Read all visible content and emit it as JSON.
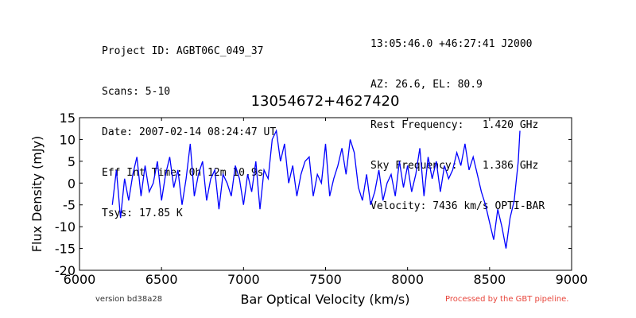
{
  "header": {
    "left": [
      "Project ID: AGBT06C_049_37",
      "Scans: 5-10",
      "Date: 2007-02-14 08:24:47 UT",
      "Eff Int Time: 0h 12m 10.9s",
      "Tsys: 17.85 K"
    ],
    "right": [
      "13:05:46.0 +46:27:41 J2000",
      "AZ: 26.6, EL: 80.9",
      "Rest Frequency:   1.420 GHz",
      "Sky Frequency:    1.386 GHz",
      "Velocity: 7436 km/s OPTI-BAR"
    ]
  },
  "footer": {
    "version": "version bd38a28",
    "pipeline": "Processed by the GBT pipeline.",
    "pipeline_color": "#e8463c"
  },
  "chart_data": {
    "type": "line",
    "title": "13054672+4627420",
    "xlabel": "Bar Optical Velocity (km/s)",
    "ylabel": "Flux Density (mJy)",
    "xlim": [
      6000,
      9000
    ],
    "ylim": [
      -20,
      15
    ],
    "xticks": [
      6000,
      6500,
      7000,
      7500,
      8000,
      8500,
      9000
    ],
    "yticks": [
      -20,
      -15,
      -10,
      -5,
      0,
      5,
      10,
      15
    ],
    "grid": false,
    "series": [
      {
        "color": "#0000ff",
        "x": [
          6200,
          6225,
          6250,
          6275,
          6300,
          6325,
          6350,
          6375,
          6400,
          6425,
          6450,
          6475,
          6500,
          6525,
          6550,
          6575,
          6600,
          6625,
          6650,
          6675,
          6700,
          6725,
          6750,
          6775,
          6800,
          6825,
          6850,
          6875,
          6900,
          6925,
          6950,
          6975,
          7000,
          7025,
          7050,
          7075,
          7100,
          7125,
          7150,
          7175,
          7200,
          7225,
          7250,
          7275,
          7300,
          7325,
          7350,
          7375,
          7400,
          7425,
          7450,
          7475,
          7500,
          7525,
          7550,
          7575,
          7600,
          7625,
          7650,
          7675,
          7700,
          7725,
          7750,
          7775,
          7800,
          7825,
          7850,
          7875,
          7900,
          7925,
          7950,
          7975,
          8000,
          8025,
          8050,
          8075,
          8100,
          8125,
          8150,
          8175,
          8200,
          8225,
          8250,
          8275,
          8300,
          8325,
          8350,
          8375,
          8400,
          8425,
          8450,
          8475,
          8500,
          8525,
          8550,
          8575,
          8600,
          8625,
          8650,
          8675,
          8685
        ],
        "y": [
          -5,
          3,
          -8,
          1,
          -4,
          2,
          6,
          -3,
          4,
          -2,
          0,
          5,
          -4,
          2,
          6,
          -1,
          3,
          -5,
          1,
          9,
          -3,
          2,
          5,
          -4,
          1,
          3,
          -6,
          2,
          0,
          -3,
          4,
          1,
          -5,
          2,
          -2,
          5,
          -6,
          3,
          1,
          10,
          12,
          5,
          9,
          0,
          4,
          -3,
          2,
          5,
          6,
          -3,
          2,
          0,
          9,
          -3,
          1,
          4,
          8,
          2,
          10,
          7,
          -1,
          -4,
          2,
          -5,
          -2,
          3,
          -4,
          0,
          2,
          -3,
          5,
          -1,
          4,
          -2,
          2,
          8,
          -3,
          6,
          1,
          5,
          -2,
          4,
          1,
          3,
          7,
          4,
          9,
          3,
          6,
          2,
          -2,
          -5,
          -9,
          -13,
          -6,
          -10,
          -15,
          -8,
          -4,
          5,
          12
        ]
      }
    ]
  }
}
